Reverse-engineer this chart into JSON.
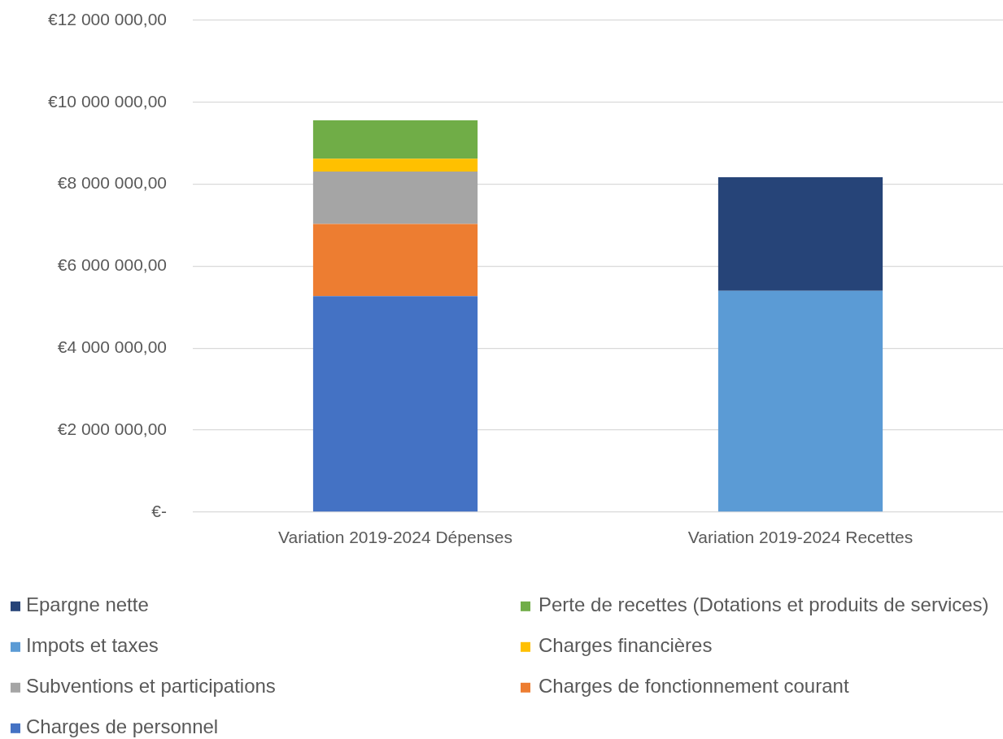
{
  "chart_data": {
    "type": "bar",
    "stacked": true,
    "categories": [
      "Variation 2019-2024 Dépenses",
      "Variation 2019-2024 Recettes"
    ],
    "series": [
      {
        "name": "Charges de personnel",
        "color": "#4472c4",
        "values": [
          5270000,
          null
        ]
      },
      {
        "name": "Charges de fonctionnement courant",
        "color": "#ed7d31",
        "values": [
          1760000,
          null
        ]
      },
      {
        "name": "Subventions et participations",
        "color": "#a5a5a5",
        "values": [
          1280000,
          null
        ]
      },
      {
        "name": "Charges financières",
        "color": "#ffc000",
        "values": [
          310000,
          null
        ]
      },
      {
        "name": "Impots et taxes",
        "color": "#5b9bd5",
        "values": [
          null,
          5400000
        ]
      },
      {
        "name": "Perte de recettes (Dotations et produits de services)",
        "color": "#70ad47",
        "values": [
          940000,
          null
        ]
      },
      {
        "name": "Epargne nette",
        "color": "#264478",
        "values": [
          null,
          2770000
        ]
      }
    ],
    "ylim": [
      0,
      12000000
    ],
    "yticks": [
      {
        "value": 0,
        "label": "€-"
      },
      {
        "value": 2000000,
        "label": "€2 000 000,00"
      },
      {
        "value": 4000000,
        "label": "€4 000 000,00"
      },
      {
        "value": 6000000,
        "label": "€6 000 000,00"
      },
      {
        "value": 8000000,
        "label": "€8 000 000,00"
      },
      {
        "value": 10000000,
        "label": "€10 000 000,00"
      },
      {
        "value": 12000000,
        "label": "€12 000 000,00"
      }
    ],
    "grid": "y",
    "legend": "bottom"
  }
}
